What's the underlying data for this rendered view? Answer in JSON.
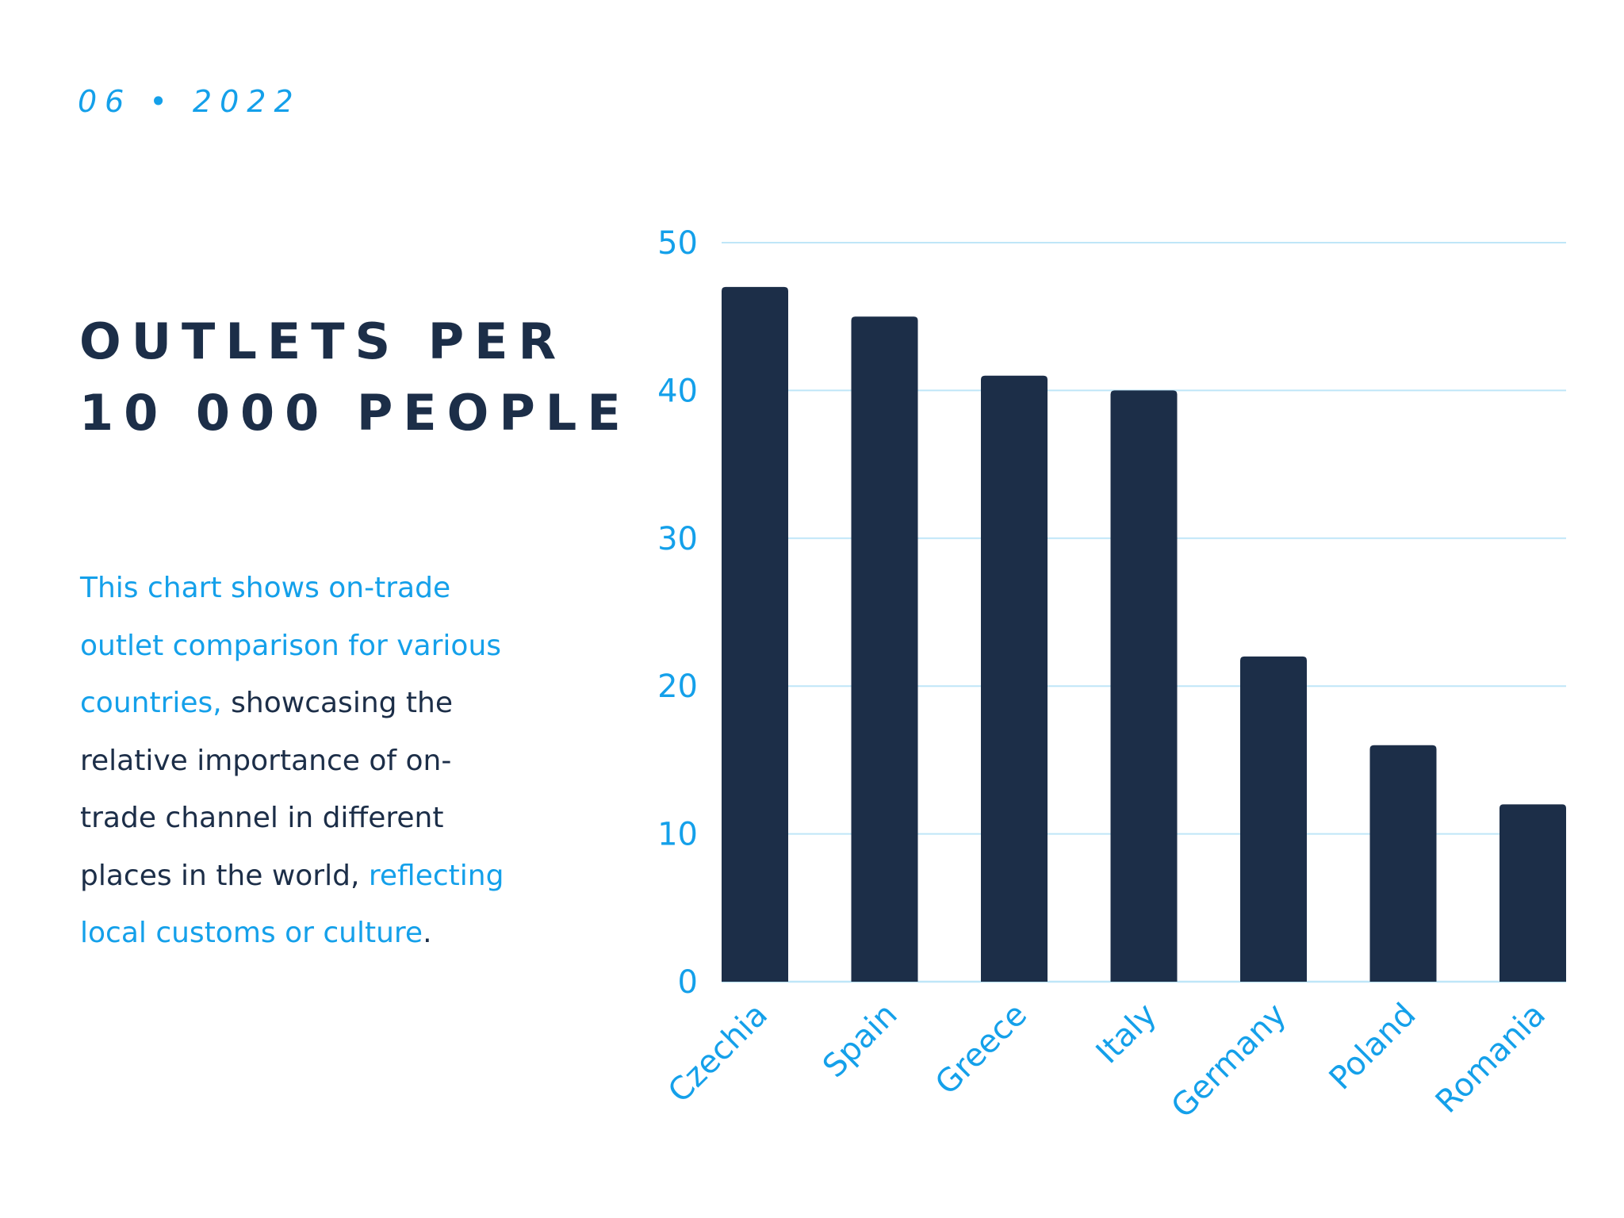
{
  "date_label": "06 • 2022",
  "title_lines": [
    "OUTLETS PER",
    "10 000 PEOPLE"
  ],
  "description": {
    "line1": "This chart shows on-trade",
    "line2": "outlet comparison for various",
    "line3_highlight": "countries,",
    "line3_rest": " showcasing the",
    "line4": "relative importance of on-",
    "line5": "trade channel in different",
    "line6_rest": "places in the world, ",
    "line6_highlight": "reflecting",
    "line7_highlight": "local customs or culture",
    "line7_rest": "."
  },
  "colors": {
    "accent": "#14a0ea",
    "bar": "#1c2e48",
    "grid": "#bfe6f8",
    "text_dark": "#1c2e48"
  },
  "chart_data": {
    "type": "bar",
    "categories": [
      "Czechia",
      "Spain",
      "Greece",
      "Italy",
      "Germany",
      "Poland",
      "Romania"
    ],
    "values": [
      47,
      45,
      41,
      40,
      22,
      16,
      12
    ],
    "title": "",
    "xlabel": "",
    "ylabel": "",
    "ylim": [
      0,
      50
    ],
    "yticks": [
      0,
      10,
      20,
      30,
      40,
      50
    ],
    "grid": true,
    "legend": "none"
  }
}
